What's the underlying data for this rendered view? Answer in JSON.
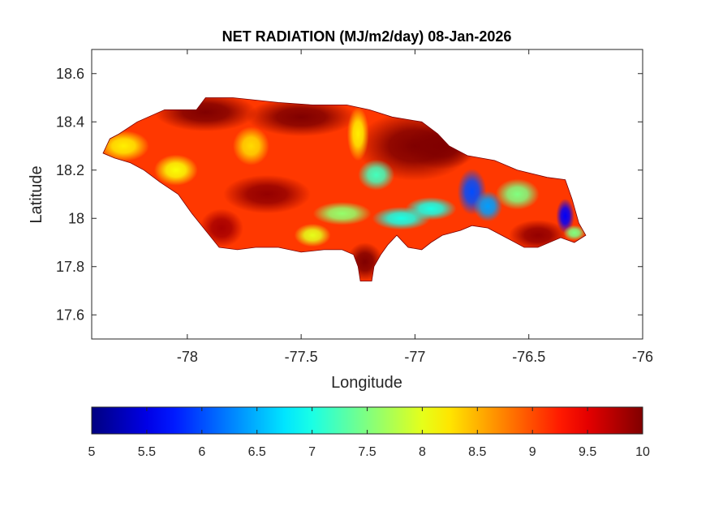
{
  "chart_data": {
    "type": "heatmap",
    "title": "NET RADIATION (MJ/m2/day) 08-Jan-2026",
    "xlabel": "Longitude",
    "ylabel": "Latitude",
    "xlim": [
      -78.42,
      -76
    ],
    "ylim": [
      17.5,
      18.7
    ],
    "xticks": [
      -78,
      -77.5,
      -77,
      -76.5,
      -76
    ],
    "xtick_labels": [
      "-78",
      "-77.5",
      "-77",
      "-76.5",
      "-76"
    ],
    "yticks": [
      17.6,
      17.8,
      18,
      18.2,
      18.4,
      18.6
    ],
    "ytick_labels": [
      "17.6",
      "17.8",
      "18",
      "18.2",
      "18.4",
      "18.6"
    ],
    "colorbar": {
      "orientation": "horizontal",
      "colormap": "jet",
      "range": [
        5,
        10
      ],
      "ticks": [
        5,
        5.5,
        6,
        6.5,
        7,
        7.5,
        8,
        8.5,
        9,
        9.5,
        10
      ],
      "tick_labels": [
        "5",
        "5.5",
        "6",
        "6.5",
        "7",
        "7.5",
        "8",
        "8.5",
        "9",
        "9.5",
        "10"
      ]
    },
    "region_outline": [
      [
        -78.37,
        18.27
      ],
      [
        -78.34,
        18.33
      ],
      [
        -78.3,
        18.35
      ],
      [
        -78.22,
        18.4
      ],
      [
        -78.1,
        18.45
      ],
      [
        -77.96,
        18.45
      ],
      [
        -77.92,
        18.5
      ],
      [
        -77.8,
        18.5
      ],
      [
        -77.6,
        18.48
      ],
      [
        -77.45,
        18.47
      ],
      [
        -77.3,
        18.47
      ],
      [
        -77.2,
        18.45
      ],
      [
        -77.1,
        18.42
      ],
      [
        -76.97,
        18.4
      ],
      [
        -76.9,
        18.35
      ],
      [
        -76.85,
        18.3
      ],
      [
        -76.77,
        18.26
      ],
      [
        -76.65,
        18.24
      ],
      [
        -76.55,
        18.2
      ],
      [
        -76.42,
        18.17
      ],
      [
        -76.34,
        18.16
      ],
      [
        -76.31,
        18.08
      ],
      [
        -76.28,
        17.98
      ],
      [
        -76.25,
        17.93
      ],
      [
        -76.3,
        17.9
      ],
      [
        -76.36,
        17.92
      ],
      [
        -76.46,
        17.88
      ],
      [
        -76.52,
        17.88
      ],
      [
        -76.6,
        17.92
      ],
      [
        -76.68,
        17.96
      ],
      [
        -76.75,
        17.97
      ],
      [
        -76.8,
        17.95
      ],
      [
        -76.88,
        17.93
      ],
      [
        -76.93,
        17.9
      ],
      [
        -76.97,
        17.87
      ],
      [
        -77.03,
        17.88
      ],
      [
        -77.08,
        17.93
      ],
      [
        -77.12,
        17.89
      ],
      [
        -77.15,
        17.85
      ],
      [
        -77.18,
        17.8
      ],
      [
        -77.19,
        17.74
      ],
      [
        -77.24,
        17.74
      ],
      [
        -77.25,
        17.8
      ],
      [
        -77.27,
        17.85
      ],
      [
        -77.32,
        17.87
      ],
      [
        -77.4,
        17.87
      ],
      [
        -77.5,
        17.86
      ],
      [
        -77.6,
        17.88
      ],
      [
        -77.7,
        17.88
      ],
      [
        -77.78,
        17.87
      ],
      [
        -77.86,
        17.88
      ],
      [
        -77.92,
        17.95
      ],
      [
        -77.98,
        18.02
      ],
      [
        -78.04,
        18.1
      ],
      [
        -78.12,
        18.15
      ],
      [
        -78.19,
        18.2
      ],
      [
        -78.25,
        18.23
      ],
      [
        -78.32,
        18.25
      ]
    ],
    "field_blobs": [
      {
        "lon": -77.92,
        "lat": 18.44,
        "sx": 0.14,
        "sy": 0.05,
        "value": 10
      },
      {
        "lon": -77.5,
        "lat": 18.42,
        "sx": 0.15,
        "sy": 0.05,
        "value": 10
      },
      {
        "lon": -77.0,
        "lat": 18.3,
        "sx": 0.16,
        "sy": 0.09,
        "value": 10
      },
      {
        "lon": -76.88,
        "lat": 18.3,
        "sx": 0.1,
        "sy": 0.06,
        "value": 10
      },
      {
        "lon": -77.22,
        "lat": 17.82,
        "sx": 0.05,
        "sy": 0.05,
        "value": 10
      },
      {
        "lon": -77.65,
        "lat": 18.1,
        "sx": 0.12,
        "sy": 0.05,
        "value": 9.9
      },
      {
        "lon": -76.46,
        "lat": 17.93,
        "sx": 0.08,
        "sy": 0.04,
        "value": 9.9
      },
      {
        "lon": -77.85,
        "lat": 17.96,
        "sx": 0.06,
        "sy": 0.05,
        "value": 9.8
      },
      {
        "lon": -78.28,
        "lat": 18.3,
        "sx": 0.07,
        "sy": 0.04,
        "value": 8.2
      },
      {
        "lon": -78.05,
        "lat": 18.2,
        "sx": 0.06,
        "sy": 0.04,
        "value": 8.1
      },
      {
        "lon": -77.72,
        "lat": 18.3,
        "sx": 0.05,
        "sy": 0.05,
        "value": 8.3
      },
      {
        "lon": -77.25,
        "lat": 18.35,
        "sx": 0.03,
        "sy": 0.07,
        "value": 8.2
      },
      {
        "lon": -77.45,
        "lat": 17.93,
        "sx": 0.05,
        "sy": 0.03,
        "value": 8.0
      },
      {
        "lon": -77.32,
        "lat": 18.02,
        "sx": 0.08,
        "sy": 0.03,
        "value": 7.6
      },
      {
        "lon": -77.17,
        "lat": 18.18,
        "sx": 0.05,
        "sy": 0.04,
        "value": 7.2
      },
      {
        "lon": -77.06,
        "lat": 18.0,
        "sx": 0.08,
        "sy": 0.03,
        "value": 7.0
      },
      {
        "lon": -76.93,
        "lat": 18.04,
        "sx": 0.07,
        "sy": 0.03,
        "value": 7.0
      },
      {
        "lon": -76.75,
        "lat": 18.11,
        "sx": 0.04,
        "sy": 0.06,
        "value": 6.0
      },
      {
        "lon": -76.68,
        "lat": 18.05,
        "sx": 0.04,
        "sy": 0.04,
        "value": 6.4
      },
      {
        "lon": -76.55,
        "lat": 18.1,
        "sx": 0.06,
        "sy": 0.04,
        "value": 7.5
      },
      {
        "lon": -76.34,
        "lat": 18.01,
        "sx": 0.025,
        "sy": 0.045,
        "value": 5.6
      },
      {
        "lon": -76.3,
        "lat": 17.94,
        "sx": 0.03,
        "sy": 0.02,
        "value": 7.5
      }
    ],
    "background_value": 9.1
  }
}
